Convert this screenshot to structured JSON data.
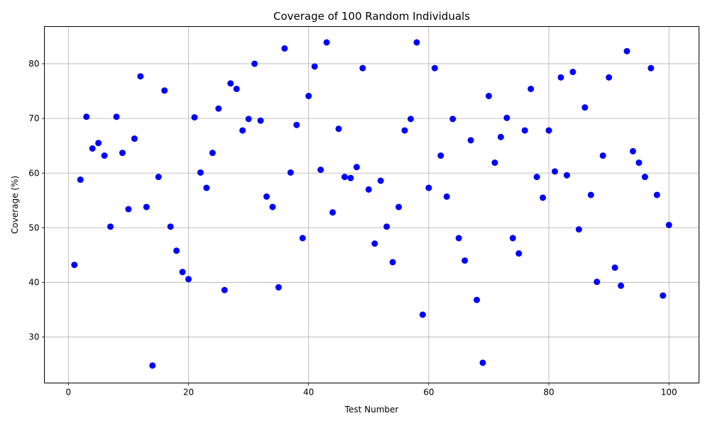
{
  "chart_data": {
    "type": "scatter",
    "title": "Coverage of 100 Random Individuals",
    "xlabel": "Test Number",
    "ylabel": "Coverage (%)",
    "xlim": [
      -4,
      105
    ],
    "ylim": [
      21.6,
      86.8
    ],
    "xticks": [
      0,
      20,
      40,
      60,
      80,
      100
    ],
    "yticks": [
      30,
      40,
      50,
      60,
      70,
      80
    ],
    "grid": true,
    "marker_color": "#0000ff",
    "x": [
      1,
      2,
      3,
      4,
      5,
      6,
      7,
      8,
      9,
      10,
      11,
      12,
      13,
      14,
      15,
      16,
      17,
      18,
      19,
      20,
      21,
      22,
      23,
      24,
      25,
      26,
      27,
      28,
      29,
      30,
      31,
      32,
      33,
      34,
      35,
      36,
      37,
      38,
      39,
      40,
      41,
      42,
      43,
      44,
      45,
      46,
      47,
      48,
      49,
      50,
      51,
      52,
      53,
      54,
      55,
      56,
      57,
      58,
      59,
      60,
      61,
      62,
      63,
      64,
      65,
      66,
      67,
      68,
      69,
      70,
      71,
      72,
      73,
      74,
      75,
      76,
      77,
      78,
      79,
      80,
      81,
      82,
      83,
      84,
      85,
      86,
      87,
      88,
      89,
      90,
      91,
      92,
      93,
      94,
      95,
      96,
      97,
      98,
      99,
      100
    ],
    "y": [
      43.2,
      58.8,
      70.3,
      64.5,
      65.5,
      63.2,
      50.2,
      70.3,
      63.7,
      53.4,
      66.3,
      77.7,
      53.8,
      24.8,
      59.3,
      75.1,
      50.2,
      45.8,
      41.9,
      40.6,
      70.2,
      60.1,
      57.3,
      63.7,
      71.8,
      38.6,
      76.4,
      75.4,
      67.8,
      69.9,
      80.0,
      69.6,
      55.7,
      53.8,
      39.1,
      82.8,
      60.1,
      68.8,
      48.1,
      74.1,
      79.5,
      60.6,
      83.9,
      52.8,
      68.1,
      59.3,
      59.1,
      61.1,
      79.2,
      57.0,
      47.1,
      58.6,
      50.2,
      43.7,
      53.8,
      67.8,
      69.9,
      83.9,
      34.1,
      57.3,
      79.2,
      63.2,
      55.7,
      69.9,
      48.1,
      44.0,
      66.0,
      36.8,
      25.3,
      74.1,
      61.9,
      66.6,
      70.1,
      48.1,
      45.3,
      67.8,
      75.4,
      59.3,
      55.5,
      67.8,
      60.3,
      77.5,
      59.6,
      78.5,
      49.7,
      72.0,
      56.0,
      40.1,
      63.2,
      77.5,
      42.7,
      39.4,
      82.3,
      64.0,
      61.9,
      59.3,
      79.2,
      56.0,
      37.6,
      50.5
    ]
  }
}
